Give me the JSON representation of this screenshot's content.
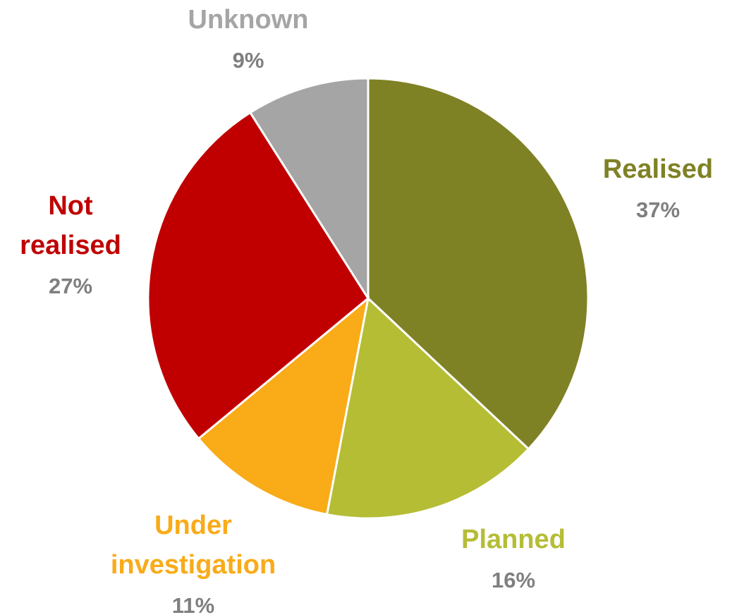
{
  "chart_data": {
    "type": "pie",
    "categories": [
      "Realised",
      "Planned",
      "Under investigation",
      "Not realised",
      "Unknown"
    ],
    "values": [
      37,
      16,
      11,
      27,
      9
    ],
    "value_labels": [
      "37%",
      "16%",
      "11%",
      "27%",
      "9%"
    ],
    "colors": [
      "#7f8125",
      "#b5bd35",
      "#f9ab18",
      "#c00000",
      "#a5a5a5"
    ],
    "value_label_color": "#7f7f7f"
  }
}
